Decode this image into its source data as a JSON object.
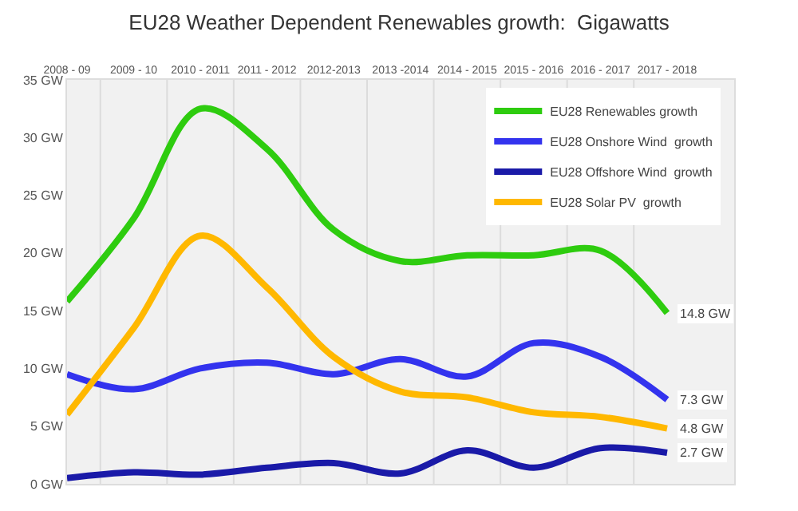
{
  "chart_data": {
    "type": "line",
    "title": "EU28 Weather Dependent Renewables growth:  Gigawatts",
    "categories": [
      "2008 - 09",
      "2009 - 10",
      "2010 - 2011",
      "2011 - 2012",
      "2012-2013",
      "2013 -2014",
      "2014 - 2015",
      "2015 - 2016",
      "2016 - 2017",
      "2017 - 2018"
    ],
    "series": [
      {
        "name": "EU28 Renewables growth",
        "color": "#2ecc0f",
        "values": [
          15.8,
          23,
          32.5,
          29,
          22,
          19.3,
          19.8,
          19.8,
          20.2,
          14.8
        ]
      },
      {
        "name": "EU28 Onshore Wind  growth",
        "color": "#3333ee",
        "values": [
          9.5,
          8.2,
          10,
          10.5,
          9.5,
          10.8,
          9.3,
          12.2,
          11,
          7.3
        ]
      },
      {
        "name": "EU28 Offshore Wind  growth",
        "color": "#1a1aa8",
        "values": [
          0.5,
          1,
          0.8,
          1.4,
          1.8,
          0.9,
          2.9,
          1.4,
          3.1,
          2.7
        ]
      },
      {
        "name": "EU28 Solar PV  growth",
        "color": "#ffb800",
        "values": [
          6,
          13.5,
          21.5,
          17,
          11,
          8,
          7.5,
          6.2,
          5.8,
          4.8
        ]
      }
    ],
    "ylim": [
      0,
      35
    ],
    "yticks": [
      {
        "value": 0,
        "label": "0 GW"
      },
      {
        "value": 5,
        "label": "5 GW"
      },
      {
        "value": 10,
        "label": "10 GW"
      },
      {
        "value": 15,
        "label": "15 GW"
      },
      {
        "value": 20,
        "label": "20 GW"
      },
      {
        "value": 25,
        "label": "25 GW"
      },
      {
        "value": 30,
        "label": "30 GW"
      },
      {
        "value": 35,
        "label": "35 GW"
      }
    ],
    "annotations": [
      {
        "text": "14.8 GW",
        "x": "2017 - 2018",
        "y": 14.8
      },
      {
        "text": "7.3 GW",
        "x": "2017 - 2018",
        "y": 7.3
      },
      {
        "text": "4.8 GW",
        "x": "2017 - 2018",
        "y": 4.8
      },
      {
        "text": "2.7 GW",
        "x": "2017 - 2018",
        "y": 2.7
      }
    ],
    "grid": "x",
    "legend": "top right",
    "marker": "none",
    "line_style": "solid"
  }
}
